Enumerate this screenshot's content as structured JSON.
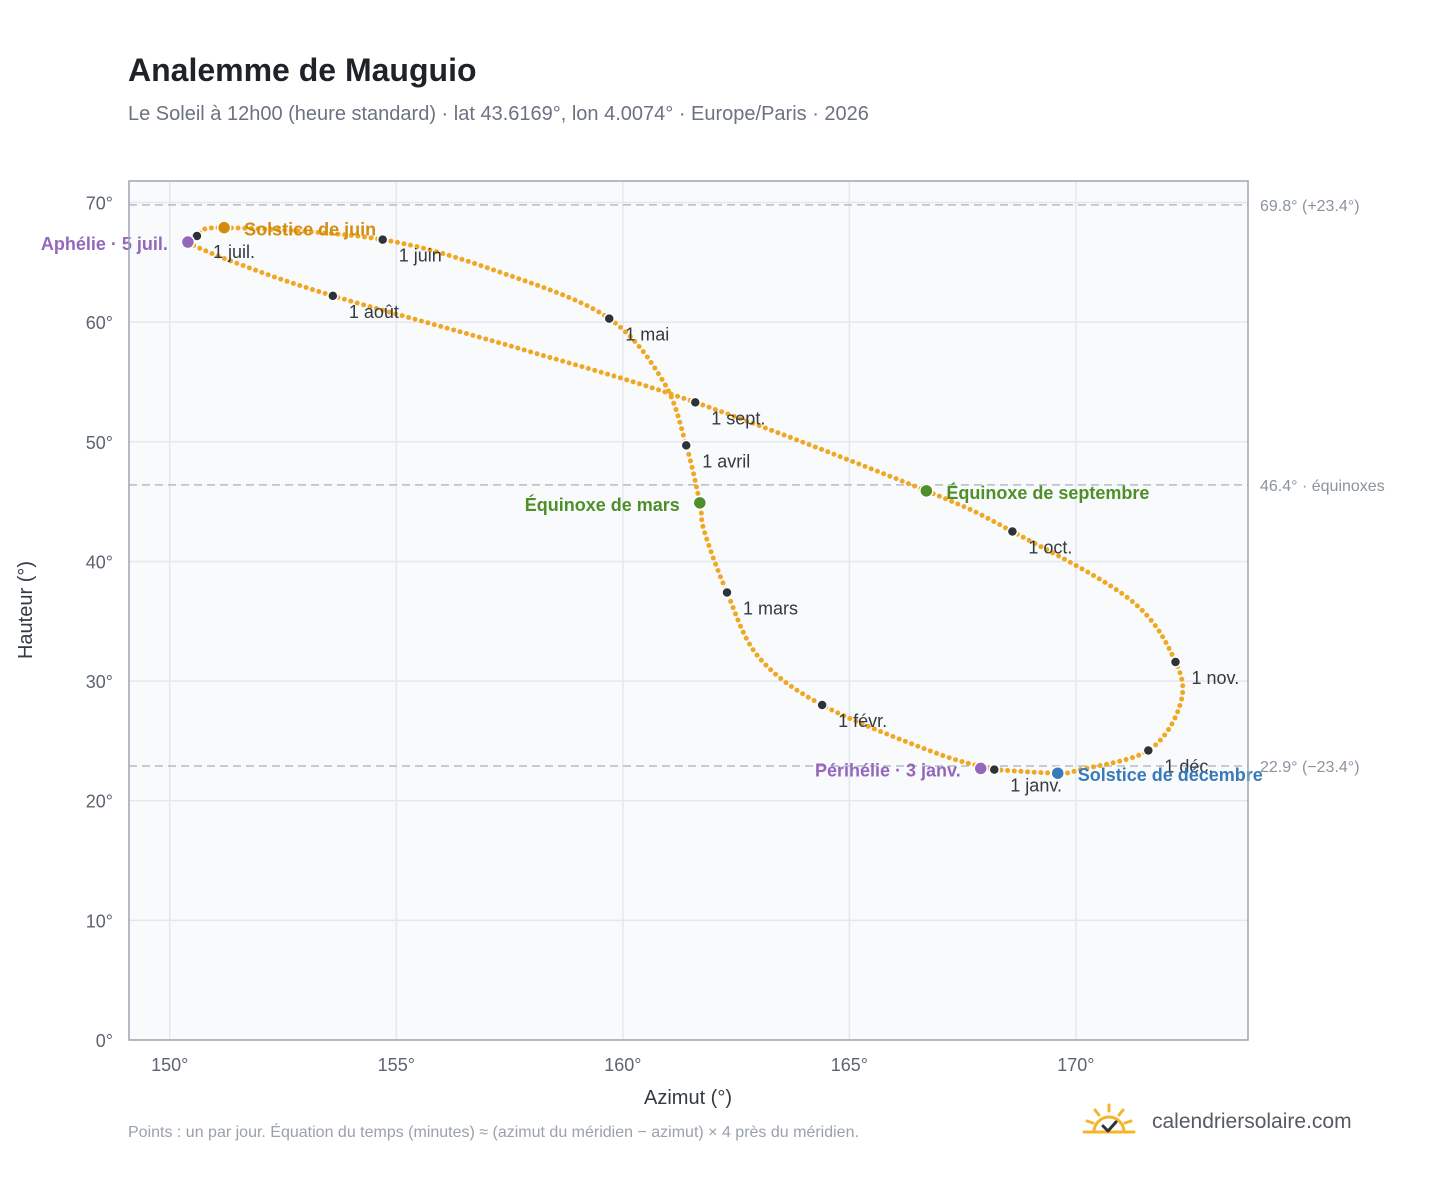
{
  "title": "Analemme de Mauguio",
  "subtitle": "Le Soleil à 12h00 (heure standard) · lat 43.6169°, lon 4.0074° · Europe/Paris · 2026",
  "footer_note": "Points : un par jour. Équation du temps (minutes) ≈ (azimut du méridien − azimut) × 4 près du méridien.",
  "brand": {
    "name": "calendriersolaire.com",
    "icon": "sun-check-icon"
  },
  "colors": {
    "curve": "#f0a824",
    "month_marker": "#2d333b",
    "aphelion": "#9467bd",
    "perihelion": "#9467bd",
    "equinox": "#4e8f2a",
    "june_solstice": "#d48c0f",
    "december_solstice": "#3a7ab8",
    "plot_bg": "#f8fafc",
    "grid": "#e4e8ee",
    "reference_line": "#b4bcc6"
  },
  "chart_data": {
    "type": "scatter",
    "xlabel": "Azimut (°)",
    "ylabel": "Hauteur (°)",
    "xlim": [
      149.1,
      173.8
    ],
    "ylim": [
      0,
      71.8
    ],
    "xticks": [
      150,
      155,
      160,
      165,
      170
    ],
    "yticks": [
      0,
      10,
      20,
      30,
      40,
      50,
      60,
      70
    ],
    "xtick_labels": [
      "150°",
      "155°",
      "160°",
      "165°",
      "170°"
    ],
    "ytick_labels": [
      "0°",
      "10°",
      "20°",
      "30°",
      "40°",
      "50°",
      "60°",
      "70°"
    ],
    "grid": true,
    "reference_lines": [
      {
        "y": 69.8,
        "label": "69.8° (+23.4°)"
      },
      {
        "y": 46.4,
        "label": "46.4° · équinoxes"
      },
      {
        "y": 22.9,
        "label": "22.9° (−23.4°)"
      }
    ],
    "month_points": [
      {
        "label": "1 janv.",
        "x": 168.2,
        "y": 22.6
      },
      {
        "label": "1 févr.",
        "x": 164.4,
        "y": 28.0
      },
      {
        "label": "1 mars",
        "x": 162.3,
        "y": 37.4
      },
      {
        "label": "1 avril",
        "x": 161.4,
        "y": 49.7
      },
      {
        "label": "1 mai",
        "x": 159.7,
        "y": 60.3
      },
      {
        "label": "1 juin",
        "x": 154.7,
        "y": 66.9
      },
      {
        "label": "1 juil.",
        "x": 150.6,
        "y": 67.2
      },
      {
        "label": "1 août",
        "x": 153.6,
        "y": 62.2
      },
      {
        "label": "1 sept.",
        "x": 161.6,
        "y": 53.3
      },
      {
        "label": "1 oct.",
        "x": 168.6,
        "y": 42.5
      },
      {
        "label": "1 nov.",
        "x": 172.2,
        "y": 31.6
      },
      {
        "label": "1 déc.",
        "x": 171.6,
        "y": 24.2
      }
    ],
    "special_points": [
      {
        "key": "perihelion",
        "label": "Périhélie · 3 janv.",
        "x": 167.9,
        "y": 22.7
      },
      {
        "key": "december_solstice",
        "label": "Solstice de décembre",
        "x": 169.6,
        "y": 22.3
      },
      {
        "key": "march_equinox",
        "label": "Équinoxe de mars",
        "x": 161.7,
        "y": 44.9
      },
      {
        "key": "june_solstice",
        "label": "Solstice de juin",
        "x": 151.2,
        "y": 67.9
      },
      {
        "key": "aphelion",
        "label": "Aphélie · 5 juil.",
        "x": 150.4,
        "y": 66.7
      },
      {
        "key": "september_equinox",
        "label": "Équinoxe de septembre",
        "x": 166.7,
        "y": 45.9
      }
    ],
    "series": [
      {
        "points": [
          [
            168.2,
            22.6
          ],
          [
            166.9,
            24.0
          ],
          [
            164.4,
            28.0
          ],
          [
            163.0,
            32.0
          ],
          [
            162.3,
            37.4
          ],
          [
            161.8,
            42.5
          ],
          [
            161.7,
            44.9
          ],
          [
            161.4,
            49.7
          ],
          [
            160.9,
            55.0
          ],
          [
            159.7,
            60.3
          ],
          [
            157.5,
            63.9
          ],
          [
            154.7,
            66.9
          ],
          [
            151.2,
            67.9
          ],
          [
            150.6,
            67.2
          ],
          [
            150.4,
            66.7
          ],
          [
            151.5,
            64.9
          ],
          [
            153.6,
            62.2
          ],
          [
            157.8,
            57.7
          ],
          [
            161.6,
            53.3
          ],
          [
            166.7,
            45.9
          ],
          [
            168.6,
            42.5
          ],
          [
            171.2,
            36.8
          ],
          [
            172.2,
            31.6
          ],
          [
            172.3,
            28.0
          ],
          [
            171.6,
            24.2
          ],
          [
            170.1,
            22.6
          ],
          [
            169.6,
            22.3
          ],
          [
            168.2,
            22.6
          ]
        ]
      }
    ]
  }
}
